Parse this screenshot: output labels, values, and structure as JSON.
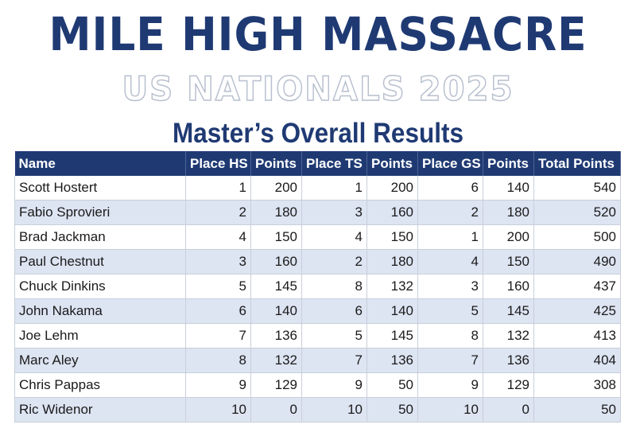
{
  "header": {
    "title": "MILE HIGH MASSACRE",
    "subtitle": "US NATIONALS 2025",
    "heading": "Master’s Overall Results"
  },
  "table": {
    "columns": [
      "Name",
      "Place HS",
      "Points",
      "Place TS",
      "Points",
      "Place GS",
      "Points",
      "Total Points"
    ],
    "rows": [
      [
        "Scott Hostert",
        "1",
        "200",
        "1",
        "200",
        "6",
        "140",
        "540"
      ],
      [
        "Fabio Sprovieri",
        "2",
        "180",
        "3",
        "160",
        "2",
        "180",
        "520"
      ],
      [
        "Brad Jackman",
        "4",
        "150",
        "4",
        "150",
        "1",
        "200",
        "500"
      ],
      [
        "Paul Chestnut",
        "3",
        "160",
        "2",
        "180",
        "4",
        "150",
        "490"
      ],
      [
        "Chuck Dinkins",
        "5",
        "145",
        "8",
        "132",
        "3",
        "160",
        "437"
      ],
      [
        "John Nakama",
        "6",
        "140",
        "6",
        "140",
        "5",
        "145",
        "425"
      ],
      [
        "Joe Lehm",
        "7",
        "136",
        "5",
        "145",
        "8",
        "132",
        "413"
      ],
      [
        "Marc Aley",
        "8",
        "132",
        "7",
        "136",
        "7",
        "136",
        "404"
      ],
      [
        "Chris Pappas",
        "9",
        "129",
        "9",
        "50",
        "9",
        "129",
        "308"
      ],
      [
        "Ric Widenor",
        "10",
        "0",
        "10",
        "50",
        "10",
        "0",
        "50"
      ]
    ]
  },
  "colors": {
    "navy": "#1f3a73",
    "row_alt": "#dde4f2"
  }
}
